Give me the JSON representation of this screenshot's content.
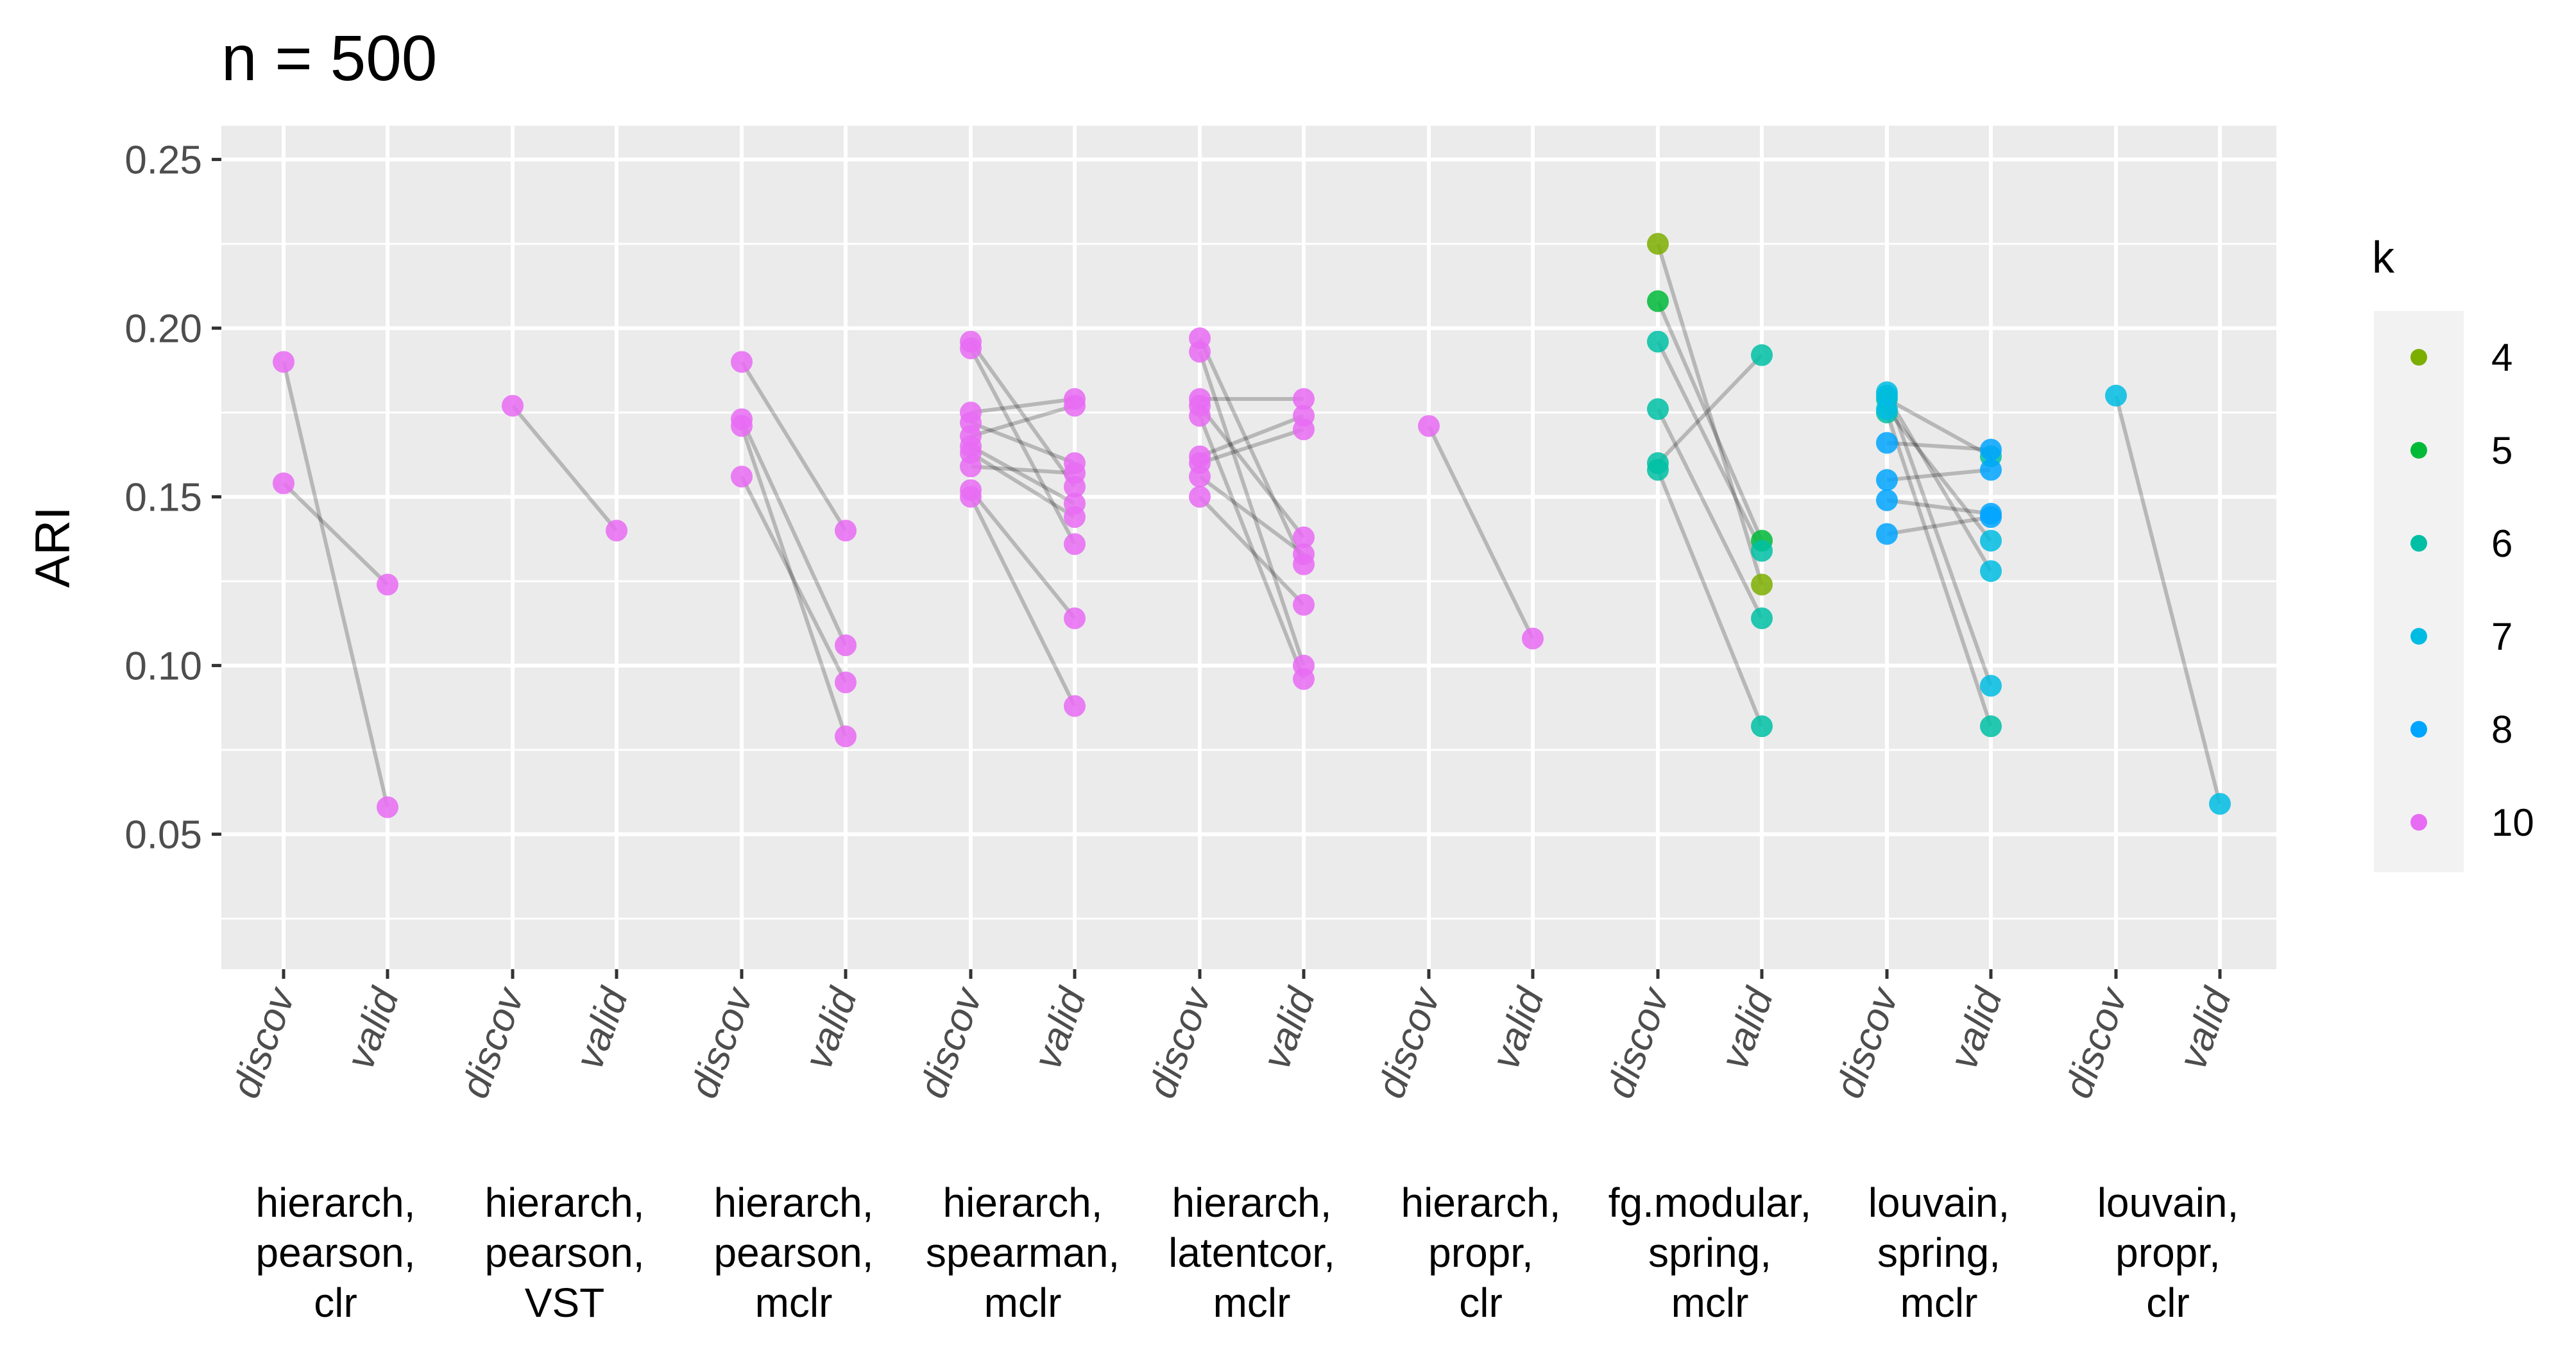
{
  "chart_data": {
    "type": "scatter",
    "title": "n = 500",
    "ylabel": "ARI",
    "xlabel": "",
    "ylim": [
      0.01,
      0.26
    ],
    "yticks": [
      0.05,
      0.1,
      0.15,
      0.2,
      0.25
    ],
    "ytick_labels": [
      "0.05",
      "0.10",
      "0.15",
      "0.20",
      "0.25"
    ],
    "grid": true,
    "legend": {
      "title": "k",
      "placement": "right",
      "entries": [
        {
          "label": "4",
          "color": "#7CAE00"
        },
        {
          "label": "5",
          "color": "#00BA38"
        },
        {
          "label": "6",
          "color": "#00BFA4"
        },
        {
          "label": "7",
          "color": "#00BCE3"
        },
        {
          "label": "8",
          "color": "#00A5FF"
        },
        {
          "label": "10",
          "color": "#E76BF3"
        }
      ]
    },
    "sub_categories": [
      "discov",
      "valid"
    ],
    "groups": [
      {
        "label": [
          "hierarch,",
          "pearson,",
          "clr"
        ],
        "pairs": [
          {
            "k": "10",
            "discov": 0.19,
            "valid": 0.058
          },
          {
            "k": "10",
            "discov": 0.154,
            "valid": 0.124
          }
        ]
      },
      {
        "label": [
          "hierarch,",
          "pearson,",
          "VST"
        ],
        "pairs": [
          {
            "k": "10",
            "discov": 0.177,
            "valid": 0.14
          }
        ]
      },
      {
        "label": [
          "hierarch,",
          "pearson,",
          "mclr"
        ],
        "pairs": [
          {
            "k": "10",
            "discov": 0.19,
            "valid": 0.14
          },
          {
            "k": "10",
            "discov": 0.173,
            "valid": 0.106
          },
          {
            "k": "10",
            "discov": 0.171,
            "valid": 0.079
          },
          {
            "k": "10",
            "discov": 0.156,
            "valid": 0.095
          }
        ]
      },
      {
        "label": [
          "hierarch,",
          "spearman,",
          "mclr"
        ],
        "pairs": [
          {
            "k": "10",
            "discov": 0.196,
            "valid": 0.153
          },
          {
            "k": "10",
            "discov": 0.194,
            "valid": 0.136
          },
          {
            "k": "10",
            "discov": 0.175,
            "valid": 0.179
          },
          {
            "k": "10",
            "discov": 0.172,
            "valid": 0.16
          },
          {
            "k": "10",
            "discov": 0.168,
            "valid": 0.177
          },
          {
            "k": "10",
            "discov": 0.165,
            "valid": 0.148
          },
          {
            "k": "10",
            "discov": 0.163,
            "valid": 0.144
          },
          {
            "k": "10",
            "discov": 0.159,
            "valid": 0.157
          },
          {
            "k": "10",
            "discov": 0.152,
            "valid": 0.114
          },
          {
            "k": "10",
            "discov": 0.15,
            "valid": 0.088
          }
        ]
      },
      {
        "label": [
          "hierarch,",
          "latentcor,",
          "mclr"
        ],
        "pairs": [
          {
            "k": "10",
            "discov": 0.197,
            "valid": 0.13
          },
          {
            "k": "10",
            "discov": 0.193,
            "valid": 0.1
          },
          {
            "k": "10",
            "discov": 0.179,
            "valid": 0.179
          },
          {
            "k": "10",
            "discov": 0.177,
            "valid": 0.138
          },
          {
            "k": "10",
            "discov": 0.174,
            "valid": 0.096
          },
          {
            "k": "10",
            "discov": 0.162,
            "valid": 0.174
          },
          {
            "k": "10",
            "discov": 0.16,
            "valid": 0.17
          },
          {
            "k": "10",
            "discov": 0.156,
            "valid": 0.133
          },
          {
            "k": "10",
            "discov": 0.15,
            "valid": 0.118
          }
        ]
      },
      {
        "label": [
          "hierarch,",
          "propr,",
          "clr"
        ],
        "pairs": [
          {
            "k": "10",
            "discov": 0.171,
            "valid": 0.108
          }
        ]
      },
      {
        "label": [
          "fg.modular,",
          "spring,",
          "mclr"
        ],
        "pairs": [
          {
            "k": "4",
            "discov": 0.225,
            "valid": 0.124
          },
          {
            "k": "5",
            "discov": 0.208,
            "valid": 0.137
          },
          {
            "k": "6",
            "discov": 0.196,
            "valid": 0.134
          },
          {
            "k": "6",
            "discov": 0.176,
            "valid": 0.114
          },
          {
            "k": "6",
            "discov": 0.158,
            "valid": 0.082
          },
          {
            "k": "6",
            "discov": 0.16,
            "valid": 0.192
          }
        ]
      },
      {
        "label": [
          "louvain,",
          "spring,",
          "mclr"
        ],
        "pairs": [
          {
            "k": "7",
            "discov": 0.181,
            "valid": 0.094
          },
          {
            "k": "6",
            "discov": 0.179,
            "valid": 0.162
          },
          {
            "k": "6",
            "discov": 0.175,
            "valid": 0.082
          },
          {
            "k": "8",
            "discov": 0.166,
            "valid": 0.164
          },
          {
            "k": "8",
            "discov": 0.155,
            "valid": 0.158
          },
          {
            "k": "8",
            "discov": 0.149,
            "valid": 0.145
          },
          {
            "k": "8",
            "discov": 0.139,
            "valid": 0.144
          },
          {
            "k": "7",
            "discov": 0.18,
            "valid": 0.128
          },
          {
            "k": "7",
            "discov": 0.176,
            "valid": 0.137
          }
        ]
      },
      {
        "label": [
          "louvain,",
          "propr,",
          "clr"
        ],
        "pairs": [
          {
            "k": "7",
            "discov": 0.18,
            "valid": 0.059
          }
        ]
      }
    ]
  }
}
